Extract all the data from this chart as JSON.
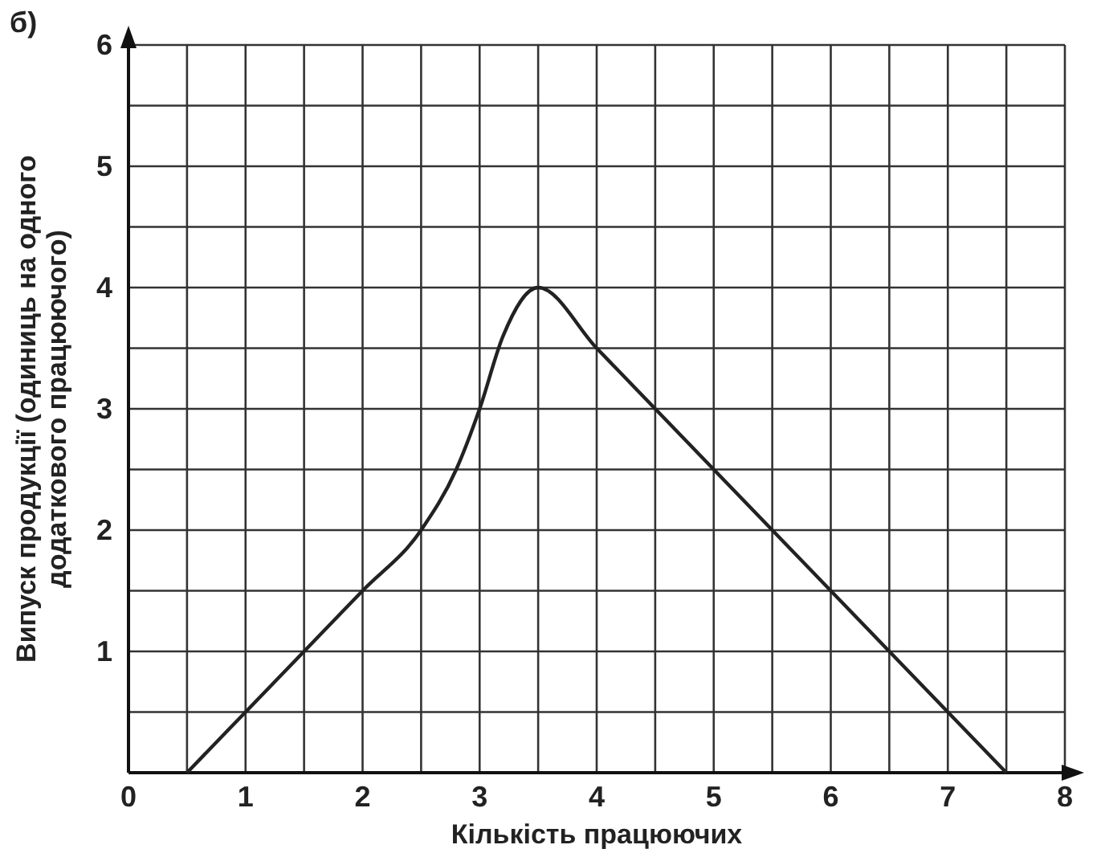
{
  "chart_data": {
    "type": "line",
    "xlabel": "Кількість працюючих",
    "ylabel": "Випуск продукції (одиниць на одного додаткового працюючого)",
    "annotations": [
      "б)"
    ],
    "x": [
      0.5,
      1,
      1.5,
      2,
      2.5,
      2.8,
      3,
      3.2,
      3.5,
      4,
      5,
      6,
      7,
      7.5
    ],
    "series": [
      {
        "color": "#222222",
        "values": [
          0,
          0.5,
          1,
          1.5,
          2,
          2.5,
          3,
          3.6,
          4,
          3.5,
          2.5,
          1.5,
          0.5,
          0
        ]
      }
    ],
    "xlim": [
      0,
      8
    ],
    "ylim": [
      0,
      6
    ],
    "xticks": [
      0,
      {
        "value": 0.5,
        "label": null
      },
      1,
      {
        "value": 1.5,
        "label": null
      },
      2,
      {
        "value": 2.5,
        "label": null
      },
      3,
      {
        "value": 3.5,
        "label": null
      },
      4,
      {
        "value": 4.5,
        "label": null
      },
      5,
      {
        "value": 5.5,
        "label": null
      },
      6,
      {
        "value": 6.5,
        "label": null
      },
      7,
      {
        "value": 7.5,
        "label": null
      },
      8
    ],
    "yticks": [
      {
        "value": 0,
        "label": null
      },
      {
        "value": 0.5,
        "label": null
      },
      1,
      {
        "value": 1.5,
        "label": null
      },
      2,
      {
        "value": 2.5,
        "label": null
      },
      3,
      {
        "value": 3.5,
        "label": null
      },
      4,
      {
        "value": 4.5,
        "label": null
      },
      5,
      {
        "value": 5.5,
        "label": null
      },
      6
    ],
    "grid": true,
    "line_style": "solid",
    "marker": "none"
  }
}
